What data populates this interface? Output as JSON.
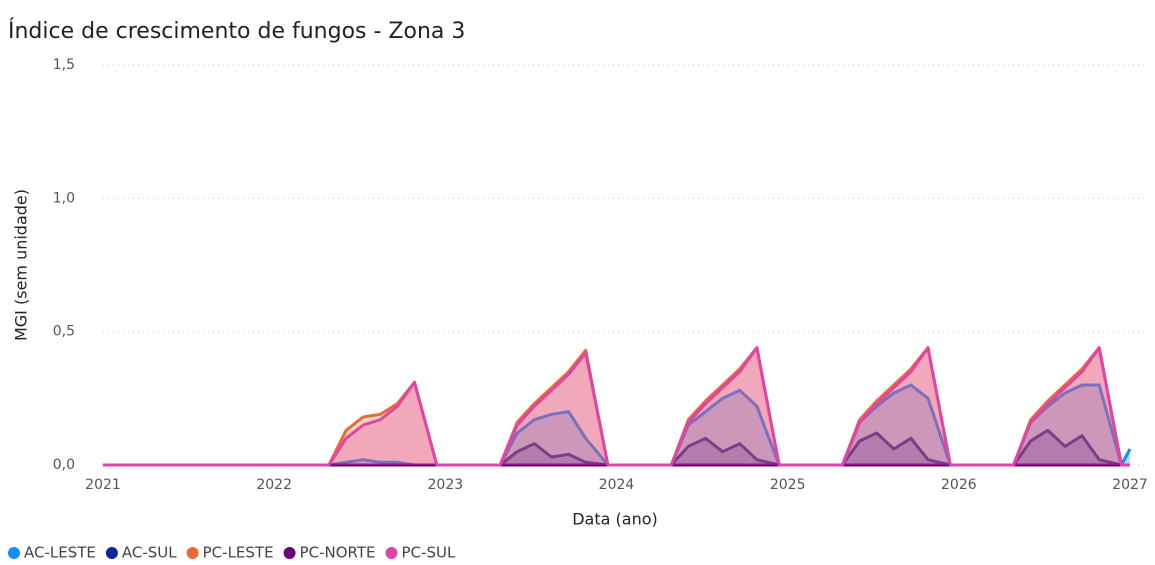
{
  "chart_data": {
    "type": "area",
    "title": "Índice de crescimento de fungos - Zona 3",
    "x_label": "Data (ano)",
    "y_label": "MGI (sem unidade)",
    "x": [
      2021,
      2022.32,
      2022.42,
      2022.52,
      2022.62,
      2022.72,
      2022.82,
      2022.95,
      2023.32,
      2023.42,
      2023.52,
      2023.62,
      2023.72,
      2023.82,
      2023.95,
      2024.32,
      2024.42,
      2024.52,
      2024.62,
      2024.72,
      2024.82,
      2024.95,
      2025.32,
      2025.42,
      2025.52,
      2025.62,
      2025.72,
      2025.82,
      2025.95,
      2026.32,
      2026.42,
      2026.52,
      2026.62,
      2026.72,
      2026.82,
      2026.95,
      2027
    ],
    "series": [
      {
        "name": "AC-LESTE",
        "color": "#118DFF",
        "values": [
          0,
          0,
          0.01,
          0.02,
          0.01,
          0.01,
          0,
          0,
          0,
          0.12,
          0.17,
          0.19,
          0.2,
          0.1,
          0,
          0,
          0.15,
          0.2,
          0.25,
          0.28,
          0.22,
          0,
          0,
          0.16,
          0.22,
          0.27,
          0.3,
          0.25,
          0,
          0,
          0.16,
          0.22,
          0.27,
          0.3,
          0.3,
          0,
          0.06
        ]
      },
      {
        "name": "AC-SUL",
        "color": "#12239E",
        "values": [
          0,
          0,
          0,
          0,
          0,
          0,
          0,
          0,
          0,
          0.05,
          0.08,
          0.03,
          0.04,
          0.01,
          0,
          0,
          0.07,
          0.1,
          0.05,
          0.08,
          0.02,
          0,
          0,
          0.09,
          0.12,
          0.06,
          0.1,
          0.02,
          0,
          0,
          0.09,
          0.13,
          0.07,
          0.11,
          0.02,
          0,
          0
        ]
      },
      {
        "name": "PC-LESTE",
        "color": "#E66C37",
        "values": [
          0,
          0,
          0.13,
          0.18,
          0.19,
          0.23,
          0.31,
          0,
          0,
          0.16,
          0.23,
          0.29,
          0.35,
          0.43,
          0,
          0,
          0.17,
          0.24,
          0.3,
          0.36,
          0.44,
          0,
          0,
          0.17,
          0.24,
          0.3,
          0.36,
          0.44,
          0,
          0,
          0.17,
          0.24,
          0.3,
          0.36,
          0.44,
          0,
          0
        ]
      },
      {
        "name": "PC-NORTE",
        "color": "#6B007B",
        "values": [
          0,
          0,
          0,
          0,
          0,
          0,
          0,
          0,
          0,
          0,
          0,
          0,
          0,
          0,
          0,
          0,
          0,
          0,
          0,
          0,
          0,
          0,
          0,
          0,
          0,
          0,
          0,
          0,
          0,
          0,
          0,
          0,
          0,
          0,
          0,
          0,
          0
        ]
      },
      {
        "name": "PC-SUL",
        "color": "#E044A7",
        "values": [
          0,
          0,
          0.1,
          0.15,
          0.17,
          0.22,
          0.31,
          0,
          0,
          0.15,
          0.22,
          0.28,
          0.34,
          0.42,
          0,
          0,
          0.16,
          0.23,
          0.29,
          0.35,
          0.44,
          0,
          0,
          0.16,
          0.23,
          0.29,
          0.35,
          0.44,
          0,
          0,
          0.16,
          0.23,
          0.29,
          0.35,
          0.44,
          0,
          0
        ]
      }
    ],
    "xlim": [
      2021,
      2027
    ],
    "xticks": [
      2021,
      2022,
      2023,
      2024,
      2025,
      2026,
      2027
    ],
    "ylim": [
      0,
      1.5
    ],
    "yticks": [
      {
        "value": 0,
        "label": "0,0"
      },
      {
        "value": 0.5,
        "label": "0,5"
      },
      {
        "value": 1,
        "label": "1,0"
      },
      {
        "value": 1.5,
        "label": "1,5"
      }
    ],
    "grid": true,
    "legend": "bottom"
  }
}
